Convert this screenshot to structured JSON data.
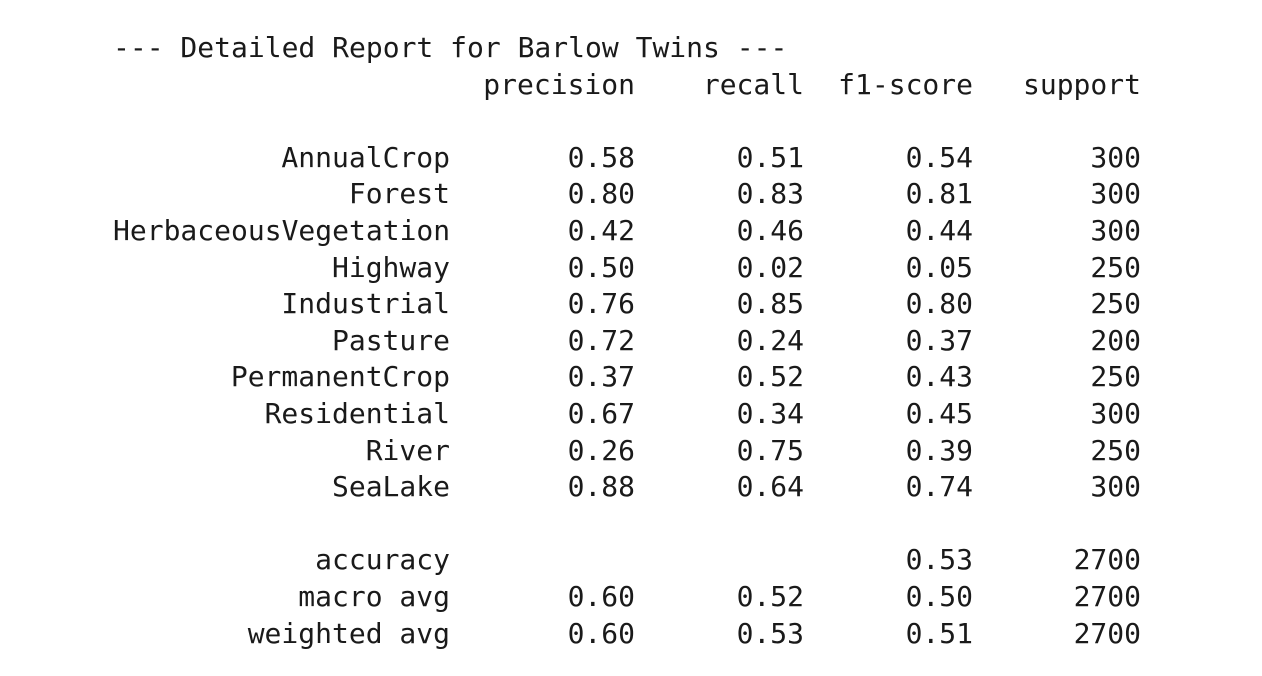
{
  "report": {
    "title": "--- Detailed Report for Barlow Twins ---",
    "headers": {
      "precision": "precision",
      "recall": "recall",
      "f1_score": "f1-score",
      "support": "support"
    },
    "classes": [
      {
        "label": "AnnualCrop",
        "precision": "0.58",
        "recall": "0.51",
        "f1": "0.54",
        "support": "300"
      },
      {
        "label": "Forest",
        "precision": "0.80",
        "recall": "0.83",
        "f1": "0.81",
        "support": "300"
      },
      {
        "label": "HerbaceousVegetation",
        "precision": "0.42",
        "recall": "0.46",
        "f1": "0.44",
        "support": "300"
      },
      {
        "label": "Highway",
        "precision": "0.50",
        "recall": "0.02",
        "f1": "0.05",
        "support": "250"
      },
      {
        "label": "Industrial",
        "precision": "0.76",
        "recall": "0.85",
        "f1": "0.80",
        "support": "250"
      },
      {
        "label": "Pasture",
        "precision": "0.72",
        "recall": "0.24",
        "f1": "0.37",
        "support": "200"
      },
      {
        "label": "PermanentCrop",
        "precision": "0.37",
        "recall": "0.52",
        "f1": "0.43",
        "support": "250"
      },
      {
        "label": "Residential",
        "precision": "0.67",
        "recall": "0.34",
        "f1": "0.45",
        "support": "300"
      },
      {
        "label": "River",
        "precision": "0.26",
        "recall": "0.75",
        "f1": "0.39",
        "support": "250"
      },
      {
        "label": "SeaLake",
        "precision": "0.88",
        "recall": "0.64",
        "f1": "0.74",
        "support": "300"
      }
    ],
    "summary": [
      {
        "label": "accuracy",
        "precision": "",
        "recall": "",
        "f1": "0.53",
        "support": "2700"
      },
      {
        "label": "macro avg",
        "precision": "0.60",
        "recall": "0.52",
        "f1": "0.50",
        "support": "2700"
      },
      {
        "label": "weighted avg",
        "precision": "0.60",
        "recall": "0.53",
        "f1": "0.51",
        "support": "2700"
      }
    ]
  }
}
